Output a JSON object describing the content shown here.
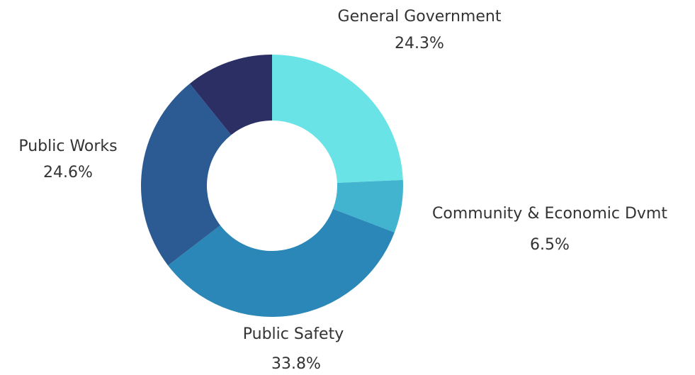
{
  "chart_data": {
    "type": "pie",
    "title": "",
    "donut": true,
    "slices": [
      {
        "label": "General Government",
        "value": 24.3,
        "value_label": "24.3%",
        "color": "#6ae3e6"
      },
      {
        "label": "Community & Economic Dvmt",
        "value": 6.5,
        "value_label": "6.5%",
        "color": "#42b4d0"
      },
      {
        "label": "Public Safety",
        "value": 33.8,
        "value_label": "33.8%",
        "color": "#2a87b7"
      },
      {
        "label": "Public Works",
        "value": 24.6,
        "value_label": "24.6%",
        "color": "#2c5b94"
      },
      {
        "label": "",
        "value": 10.8,
        "value_label": "",
        "color": "#2c2f63"
      }
    ]
  }
}
